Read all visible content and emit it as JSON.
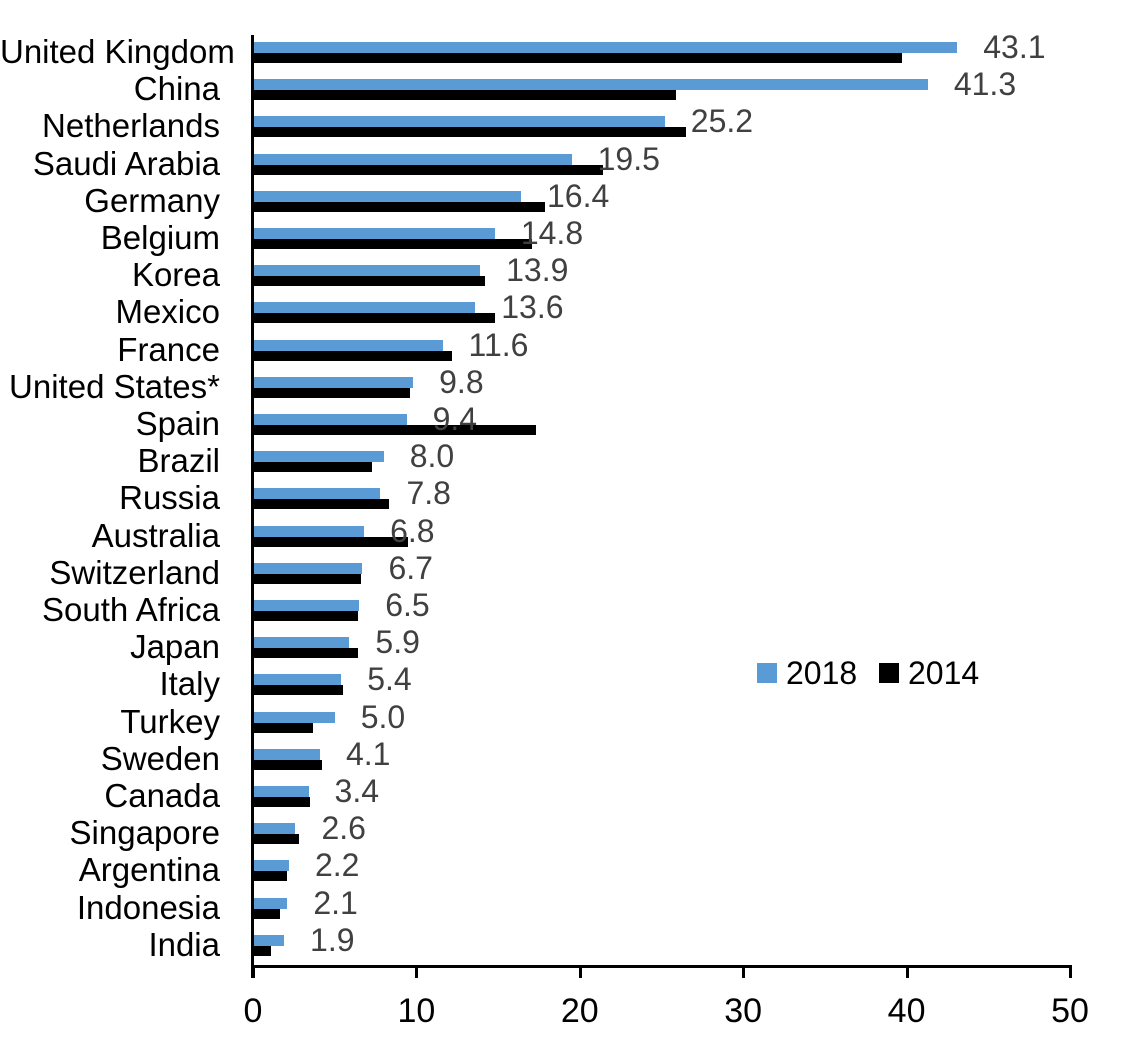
{
  "chart_data": {
    "type": "bar",
    "orientation": "horizontal",
    "title": "",
    "xlabel": "",
    "ylabel": "",
    "xlim": [
      0,
      50
    ],
    "x_ticks": [
      "0",
      "10",
      "20",
      "30",
      "40",
      "50"
    ],
    "grid": false,
    "categories": [
      "United Kingdom",
      "China",
      "Netherlands",
      "Saudi Arabia",
      "Germany",
      "Belgium",
      "Korea",
      "Mexico",
      "France",
      "United States*",
      "Spain",
      "Brazil",
      "Russia",
      "Australia",
      "Switzerland",
      "South Africa",
      "Japan",
      "Italy",
      "Turkey",
      "Sweden",
      "Canada",
      "Singapore",
      "Argentina",
      "Indonesia",
      "India"
    ],
    "series": [
      {
        "name": "2018",
        "color": "#5B9BD5",
        "values": [
          43.1,
          41.3,
          25.2,
          19.5,
          16.4,
          14.8,
          13.9,
          13.6,
          11.6,
          9.8,
          9.4,
          8.0,
          7.8,
          6.8,
          6.7,
          6.5,
          5.9,
          5.4,
          5.0,
          4.1,
          3.4,
          2.6,
          2.2,
          2.1,
          1.9
        ],
        "data_labels": [
          "43.1",
          "41.3",
          "25.2",
          "19.5",
          "16.4",
          "14.8",
          "13.9",
          "13.6",
          "11.6",
          "9.8",
          "9.4",
          "8.0",
          "7.8",
          "6.8",
          "6.7",
          "6.5",
          "5.9",
          "5.4",
          "5.0",
          "4.1",
          "3.4",
          "2.6",
          "2.2",
          "2.1",
          "1.9"
        ]
      },
      {
        "name": "2014",
        "color": "#000000",
        "values": [
          39.7,
          25.9,
          26.5,
          21.4,
          17.9,
          17.1,
          14.2,
          14.8,
          12.2,
          9.6,
          17.3,
          7.3,
          8.3,
          9.5,
          6.6,
          6.4,
          6.4,
          5.5,
          3.7,
          4.2,
          3.5,
          2.8,
          2.1,
          1.65,
          1.1
        ],
        "values_are_estimates": true,
        "data_labels": []
      }
    ],
    "legend": {
      "position": "middle-right",
      "entries": [
        "2018",
        "2014"
      ]
    },
    "value_label_color": "#404040",
    "axis_color": "#000000"
  }
}
